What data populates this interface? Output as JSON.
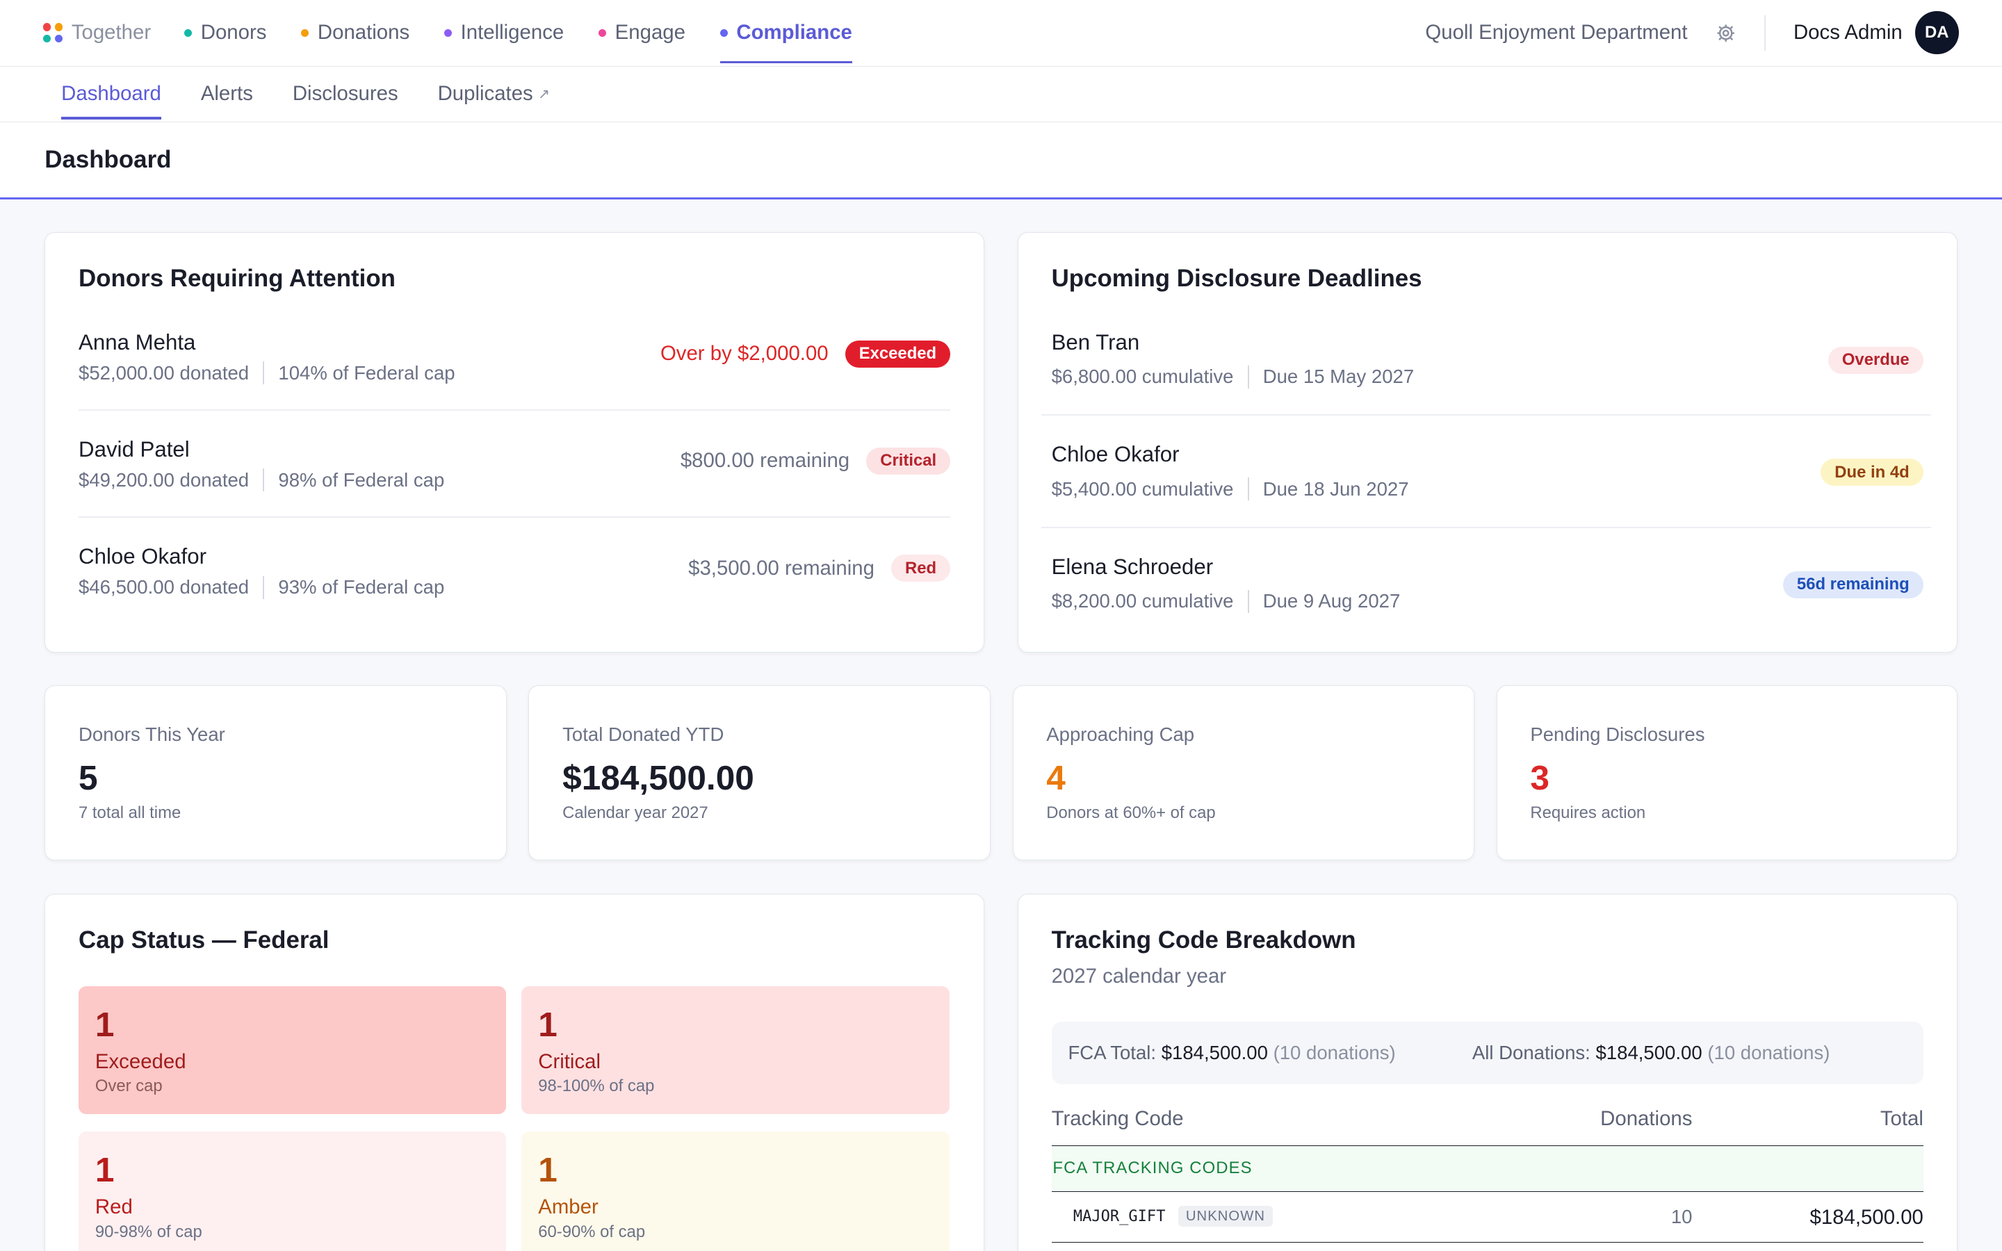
{
  "topnav": {
    "brand": "Together",
    "items": [
      {
        "label": "Donors",
        "color": "#14b8a6"
      },
      {
        "label": "Donations",
        "color": "#f59e0b"
      },
      {
        "label": "Intelligence",
        "color": "#8b5cf6"
      },
      {
        "label": "Engage",
        "color": "#ec4899"
      },
      {
        "label": "Compliance",
        "color": "#6366f1"
      }
    ],
    "org": "Quoll Enjoyment Department",
    "user": "Docs Admin",
    "initials": "DA"
  },
  "subnav": {
    "items": [
      "Dashboard",
      "Alerts",
      "Disclosures",
      "Duplicates"
    ],
    "ext_icon": "↗"
  },
  "page": {
    "title": "Dashboard"
  },
  "attention": {
    "title": "Donors Requiring Attention",
    "rows": [
      {
        "name": "Anna Mehta",
        "donated": "$52,000.00 donated",
        "pct": "104% of Federal cap",
        "status": "Over by $2,000.00",
        "badge": "Exceeded"
      },
      {
        "name": "David Patel",
        "donated": "$49,200.00 donated",
        "pct": "98% of Federal cap",
        "status": "$800.00 remaining",
        "badge": "Critical"
      },
      {
        "name": "Chloe Okafor",
        "donated": "$46,500.00 donated",
        "pct": "93% of Federal cap",
        "status": "$3,500.00 remaining",
        "badge": "Red"
      }
    ]
  },
  "deadlines": {
    "title": "Upcoming Disclosure Deadlines",
    "rows": [
      {
        "name": "Ben Tran",
        "cumulative": "$6,800.00 cumulative",
        "due": "Due 15 May 2027",
        "badge": "Overdue"
      },
      {
        "name": "Chloe Okafor",
        "cumulative": "$5,400.00 cumulative",
        "due": "Due 18 Jun 2027",
        "badge": "Due in 4d"
      },
      {
        "name": "Elena Schroeder",
        "cumulative": "$8,200.00 cumulative",
        "due": "Due 9 Aug 2027",
        "badge": "56d remaining"
      }
    ]
  },
  "stats": [
    {
      "label": "Donors This Year",
      "value": "5",
      "hint": "7 total all time"
    },
    {
      "label": "Total Donated YTD",
      "value": "$184,500.00",
      "hint": "Calendar year 2027"
    },
    {
      "label": "Approaching Cap",
      "value": "4",
      "hint": "Donors at 60%+ of cap"
    },
    {
      "label": "Pending Disclosures",
      "value": "3",
      "hint": "Requires action"
    }
  ],
  "cap": {
    "title": "Cap Status — Federal",
    "tiles": [
      {
        "count": "1",
        "label": "Exceeded",
        "sub": "Over cap"
      },
      {
        "count": "1",
        "label": "Critical",
        "sub": "98-100% of cap"
      },
      {
        "count": "1",
        "label": "Red",
        "sub": "90-98% of cap"
      },
      {
        "count": "1",
        "label": "Amber",
        "sub": "60-90% of cap"
      }
    ]
  },
  "tracking": {
    "title": "Tracking Code Breakdown",
    "subtitle": "2027 calendar year",
    "fca_label": "FCA Total:",
    "fca_amount": "$184,500.00",
    "fca_count": "(10 donations)",
    "all_label": "All Donations:",
    "all_amount": "$184,500.00",
    "all_count": "(10 donations)",
    "headers": [
      "Tracking Code",
      "Donations",
      "Total"
    ],
    "group": "FCA TRACKING CODES",
    "rows": [
      {
        "code": "MAJOR_GIFT",
        "tag": "UNKNOWN",
        "donations": "10",
        "total": "$184,500.00"
      }
    ]
  }
}
